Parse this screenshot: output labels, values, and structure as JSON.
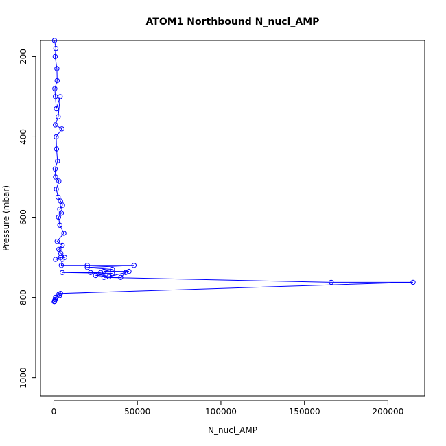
{
  "chart_data": {
    "type": "scatter",
    "title": "ATOM1 Northbound N_nucl_AMP",
    "xlabel": "N_nucl_AMP",
    "ylabel": "Pressure (mbar)",
    "xlim": [
      -8000,
      222000
    ],
    "ylim": [
      1045,
      160
    ],
    "y_reversed": true,
    "grid": false,
    "x_ticks": [
      {
        "value": 0,
        "label": "0"
      },
      {
        "value": 50000,
        "label": "50000"
      },
      {
        "value": 100000,
        "label": "100000"
      },
      {
        "value": 150000,
        "label": "150000"
      },
      {
        "value": 200000,
        "label": "200000"
      }
    ],
    "y_ticks": [
      {
        "value": 200,
        "label": "200"
      },
      {
        "value": 400,
        "label": "400"
      },
      {
        "value": 600,
        "label": "600"
      },
      {
        "value": 800,
        "label": "800"
      },
      {
        "value": 1000,
        "label": "1000"
      }
    ],
    "color": "#0000ff",
    "series": [
      {
        "x": [
          400,
          1200,
          800,
          1800,
          2000,
          600,
          900,
          1500,
          3800,
          2600,
          900,
          4800,
          1400,
          1600,
          2200,
          800,
          1000,
          3000,
          1500,
          2500,
          4000,
          5200,
          3500,
          4500,
          2800,
          3600,
          6000,
          2000,
          5000,
          3000,
          4200,
          6500,
          4000,
          1000,
          5000,
          4500,
          20000,
          48000,
          20000,
          35000,
          30000,
          45000,
          22000,
          28000,
          5000,
          35000,
          25000,
          33000,
          43000,
          40000,
          30000,
          166000,
          215000,
          4000,
          3000,
          3500,
          1000,
          800,
          500,
          300,
          200
        ],
        "y": [
          160,
          180,
          200,
          230,
          260,
          280,
          300,
          330,
          300,
          350,
          370,
          380,
          400,
          430,
          460,
          480,
          500,
          510,
          530,
          550,
          560,
          570,
          580,
          590,
          600,
          620,
          640,
          660,
          670,
          680,
          690,
          700,
          700,
          705,
          705,
          720,
          720,
          720,
          725,
          730,
          735,
          735,
          738,
          738,
          738,
          740,
          745,
          748,
          738,
          750,
          750,
          762,
          762,
          790,
          792,
          795,
          800,
          805,
          808,
          810,
          810
        ]
      }
    ]
  }
}
